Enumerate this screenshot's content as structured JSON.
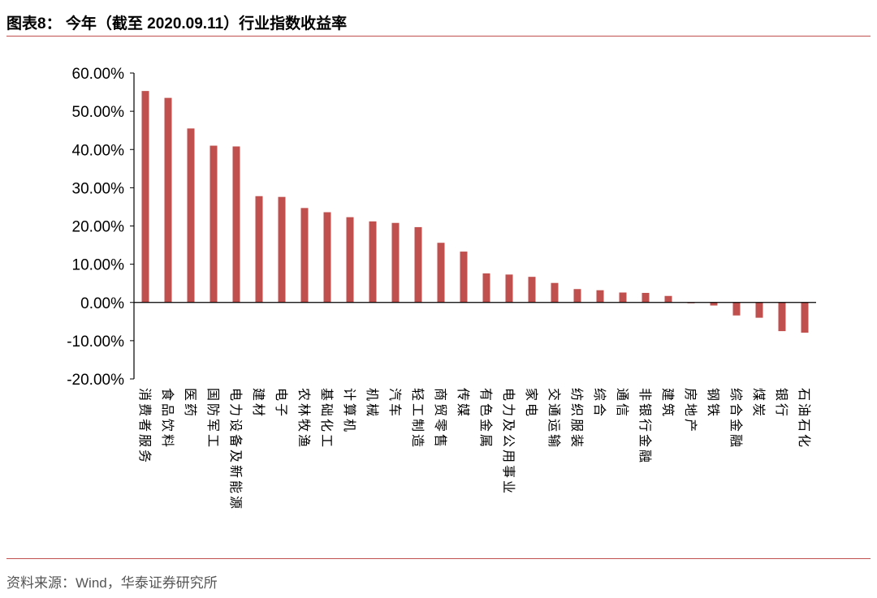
{
  "header": {
    "title": "图表8： 今年（截至 2020.09.11）行业指数收益率"
  },
  "footer": {
    "source": "资料来源：Wind，华泰证券研究所"
  },
  "colors": {
    "bar": "#c0504d",
    "rule": "#c0504d",
    "axis": "#000000"
  },
  "chart_data": {
    "type": "bar",
    "title": "",
    "xlabel": "",
    "ylabel": "",
    "ylim": [
      -20,
      60
    ],
    "yticks": [
      60,
      50,
      40,
      30,
      20,
      10,
      0,
      -10,
      -20
    ],
    "ytick_labels": [
      "60.00%",
      "50.00%",
      "40.00%",
      "30.00%",
      "20.00%",
      "10.00%",
      "0.00%",
      "-10.00%",
      "-20.00%"
    ],
    "grid": false,
    "legend": "none",
    "categories": [
      "消费者服务",
      "食品饮料",
      "医药",
      "国防军工",
      "电力设备及新能源",
      "建材",
      "电子",
      "农林牧渔",
      "基础化工",
      "计算机",
      "机械",
      "汽车",
      "轻工制造",
      "商贸零售",
      "传媒",
      "有色金属",
      "电力及公用事业",
      "家电",
      "交通运输",
      "纺织服装",
      "综合",
      "通信",
      "非银行金融",
      "建筑",
      "房地产",
      "钢铁",
      "综合金融",
      "煤炭",
      "银行",
      "石油石化"
    ],
    "values": [
      55.3,
      53.5,
      45.5,
      41.0,
      40.8,
      27.8,
      27.6,
      24.7,
      23.6,
      22.3,
      21.2,
      20.8,
      19.7,
      15.6,
      13.3,
      7.6,
      7.3,
      6.7,
      5.1,
      3.5,
      3.2,
      2.6,
      2.5,
      1.7,
      -0.2,
      -0.8,
      -3.4,
      -4.0,
      -7.5,
      -7.9
    ]
  }
}
